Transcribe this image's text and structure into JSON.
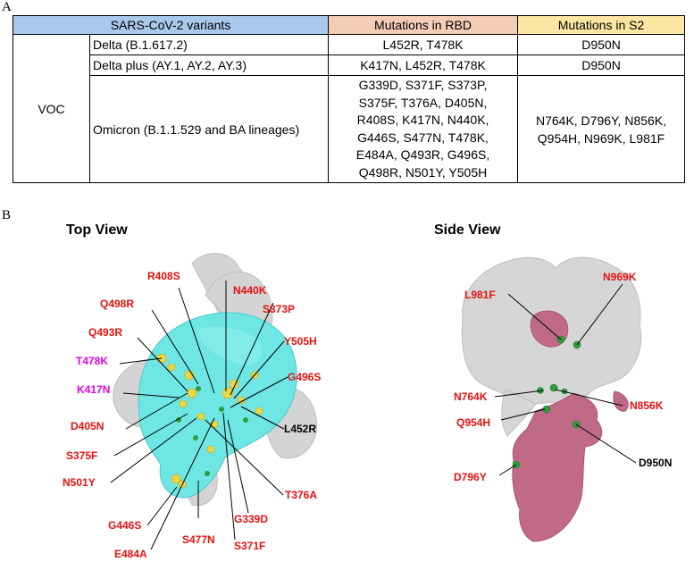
{
  "panelA": {
    "letter": "A",
    "headers": {
      "variants": "SARS-CoV-2 variants",
      "rbd": "Mutations in RBD",
      "s2": "Mutations in S2"
    },
    "category": "VOC",
    "rows": [
      {
        "name": "Delta (B.1.617.2)",
        "rbd": "L452R, T478K",
        "s2": "D950N"
      },
      {
        "name": "Delta plus (AY.1, AY.2, AY.3)",
        "rbd": "K417N, L452R, T478K",
        "s2": "D950N"
      },
      {
        "name": "Omicron (B.1.1.529 and BA lineages)",
        "rbd": "G339D, S371F, S373P,\nS375F, T376A, D405N,\nR408S, K417N, N440K,\nG446S, S477N, T478K,\nE484A, Q493R, G496S,\nQ498R, N501Y, Y505H",
        "s2": "N764K, D796Y, N856K,\nQ954H, N969K, L981F"
      }
    ]
  },
  "panelB": {
    "letter": "B",
    "top_view": {
      "title": "Top View",
      "labels": {
        "R408S": "R408S",
        "N440K": "N440K",
        "Q498R": "Q498R",
        "S373P": "S373P",
        "Q493R": "Q493R",
        "T478K": "T478K",
        "Y505H": "Y505H",
        "K417N": "K417N",
        "G496S": "G496S",
        "D405N": "D405N",
        "L452R": "L452R",
        "S375F": "S375F",
        "N501Y": "N501Y",
        "T376A": "T376A",
        "G446S": "G446S",
        "G339D": "G339D",
        "E484A": "E484A",
        "S477N": "S477N",
        "S371F": "S371F"
      }
    },
    "side_view": {
      "title": "Side View",
      "labels": {
        "N969K": "N969K",
        "L981F": "L981F",
        "N764K": "N764K",
        "N856K": "N856K",
        "Q954H": "Q954H",
        "D950N": "D950N",
        "D796Y": "D796Y"
      }
    },
    "colors": {
      "red_label": "#e8100f",
      "magenta_label": "#e600e6",
      "black_label": "#000000",
      "rbd_cyan": "#6ee7e4",
      "spike_grey": "#d6d6d6",
      "s2_pink": "#c06a85",
      "mutation_yellow": "#e9d94a",
      "mutation_green": "#2e9e3f"
    }
  }
}
